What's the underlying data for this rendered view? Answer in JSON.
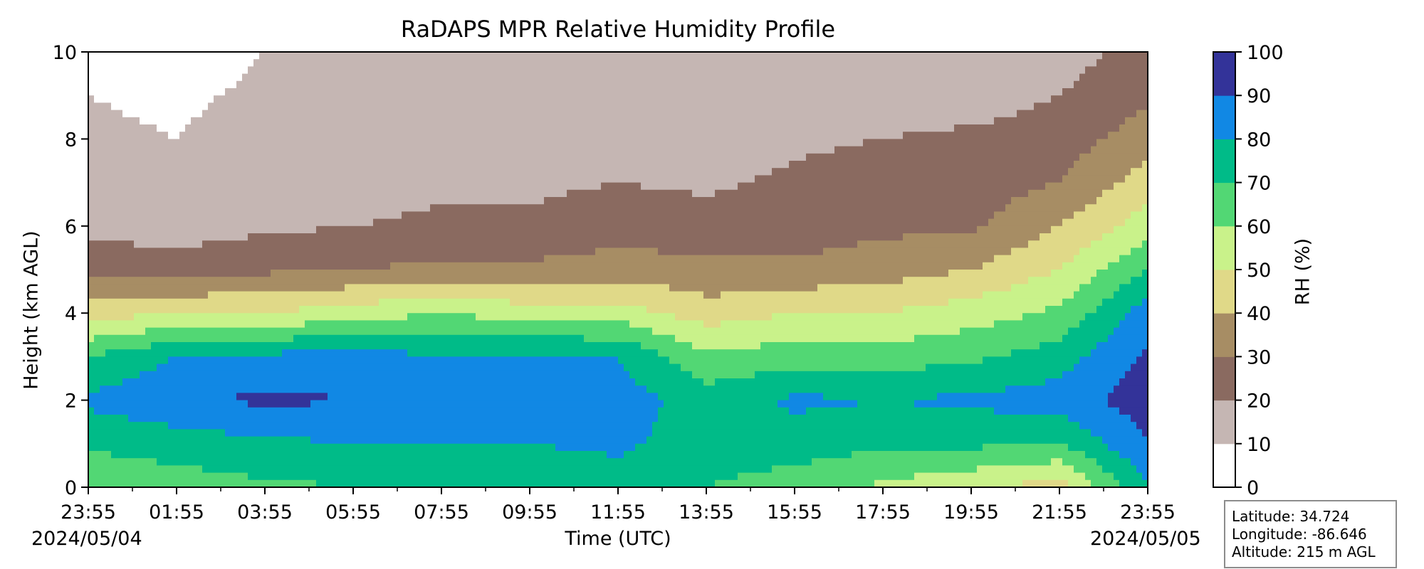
{
  "chart_data": {
    "type": "heatmap",
    "title": "RaDAPS MPR Relative Humidity Profile",
    "xlabel": "Time (UTC)",
    "ylabel": "Height (km AGL)",
    "colorbar_label": "RH (%)",
    "x_tick_labels": [
      "23:55",
      "01:55",
      "03:55",
      "05:55",
      "07:55",
      "09:55",
      "11:55",
      "13:55",
      "15:55",
      "17:55",
      "19:55",
      "21:55",
      "23:55"
    ],
    "x_range": [
      "2024/05/04 23:55",
      "2024/05/05 23:55"
    ],
    "start_date": "2024/05/04",
    "end_date": "2024/05/05",
    "y_ticks": [
      0,
      2,
      4,
      6,
      8,
      10
    ],
    "ylim": [
      0,
      10
    ],
    "colorbar_levels": [
      0,
      10,
      20,
      30,
      40,
      50,
      60,
      70,
      80,
      90,
      100
    ],
    "colorbar_colors": [
      "#ffffff",
      "#c5b6b3",
      "#8a6a60",
      "#a78d64",
      "#e0d988",
      "#c9f28a",
      "#52d774",
      "#00bb88",
      "#1188e4",
      "#333399"
    ],
    "profile_times_hours_since_start": [
      0,
      2,
      4,
      6,
      8,
      10,
      12,
      14,
      16,
      18,
      20,
      22,
      24
    ],
    "rh_profiles": [
      {
        "time": "23:55",
        "rh_by_km": [
          60,
          72,
          82,
          70,
          45,
          25,
          18,
          15,
          12,
          10,
          8
        ]
      },
      {
        "time": "01:55",
        "rh_by_km": [
          65,
          75,
          88,
          80,
          50,
          25,
          15,
          12,
          10,
          8,
          5
        ]
      },
      {
        "time": "03:55",
        "rh_by_km": [
          68,
          78,
          92,
          82,
          50,
          28,
          18,
          15,
          15,
          12,
          10
        ]
      },
      {
        "time": "05:55",
        "rh_by_km": [
          70,
          80,
          90,
          85,
          55,
          30,
          20,
          15,
          12,
          10,
          10
        ]
      },
      {
        "time": "07:55",
        "rh_by_km": [
          72,
          80,
          85,
          80,
          60,
          32,
          22,
          18,
          15,
          12,
          12
        ]
      },
      {
        "time": "09:55",
        "rh_by_km": [
          72,
          80,
          88,
          82,
          55,
          32,
          22,
          18,
          15,
          15,
          12
        ]
      },
      {
        "time": "11:55",
        "rh_by_km": [
          75,
          82,
          85,
          80,
          55,
          35,
          25,
          20,
          15,
          15,
          12
        ]
      },
      {
        "time": "13:55",
        "rh_by_km": [
          70,
          75,
          75,
          62,
          45,
          32,
          25,
          18,
          15,
          12,
          12
        ]
      },
      {
        "time": "15:55",
        "rh_by_km": [
          65,
          75,
          82,
          65,
          50,
          32,
          25,
          22,
          18,
          15,
          12
        ]
      },
      {
        "time": "17:55",
        "rh_by_km": [
          58,
          72,
          80,
          65,
          50,
          35,
          28,
          25,
          20,
          15,
          12
        ]
      },
      {
        "time": "19:55",
        "rh_by_km": [
          52,
          72,
          82,
          68,
          55,
          40,
          28,
          25,
          22,
          15,
          12
        ]
      },
      {
        "time": "21:55",
        "rh_by_km": [
          45,
          70,
          85,
          75,
          62,
          50,
          40,
          30,
          25,
          20,
          15
        ]
      },
      {
        "time": "23:55",
        "rh_by_km": [
          80,
          90,
          95,
          92,
          85,
          70,
          55,
          45,
          35,
          28,
          25
        ]
      }
    ]
  },
  "info": {
    "latitude": "Latitude: 34.724",
    "longitude": "Longitude: -86.646",
    "altitude": "Altitude: 215 m AGL"
  }
}
